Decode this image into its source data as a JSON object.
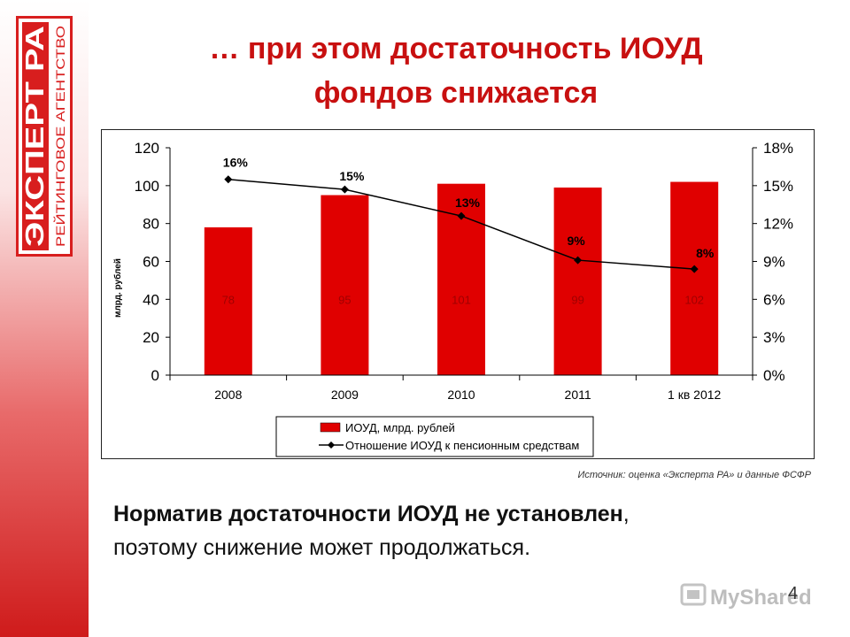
{
  "title_line1": "… при этом достаточность ИОУД",
  "title_line2": "фондов снижается",
  "logo": {
    "text_main": "ЭКСПЕРТ РА",
    "text_sub": "РЕЙТИНГОВОЕ АГЕНТСТВО"
  },
  "source": "Источник: оценка «Эксперта РА» и данные ФСФР",
  "body_bold": "Норматив достаточности ИОУД не установлен",
  "body_rest": "поэтому снижение может продолжаться.",
  "body_comma": ",",
  "page_number": "4",
  "watermark": "MyShared",
  "colors": {
    "accent": "#c81010",
    "bar": "#e00000",
    "line": "#000000"
  },
  "chart_data": {
    "type": "bar",
    "categories": [
      "2008",
      "2009",
      "2010",
      "2011",
      "1 кв 2012"
    ],
    "series": [
      {
        "name": "ИОУД, млрд. рублей",
        "type": "bar",
        "axis": "left",
        "values": [
          78,
          95,
          101,
          99,
          102
        ]
      },
      {
        "name": "Отношение ИОУД к пенсионным средствам",
        "type": "line",
        "axis": "right",
        "values": [
          15.5,
          14.7,
          12.6,
          9.1,
          8.4
        ],
        "labels": [
          "16%",
          "15%",
          "13%",
          "9%",
          "8%"
        ]
      }
    ],
    "ylabel": "млрд. рублей",
    "ylim": [
      0,
      120
    ],
    "yticks": [
      "0",
      "20",
      "40",
      "60",
      "80",
      "100",
      "120"
    ],
    "y2lim": [
      0,
      18
    ],
    "y2ticks": [
      "0%",
      "3%",
      "6%",
      "9%",
      "12%",
      "15%",
      "18%"
    ],
    "grid": false,
    "legend": "bottom"
  }
}
